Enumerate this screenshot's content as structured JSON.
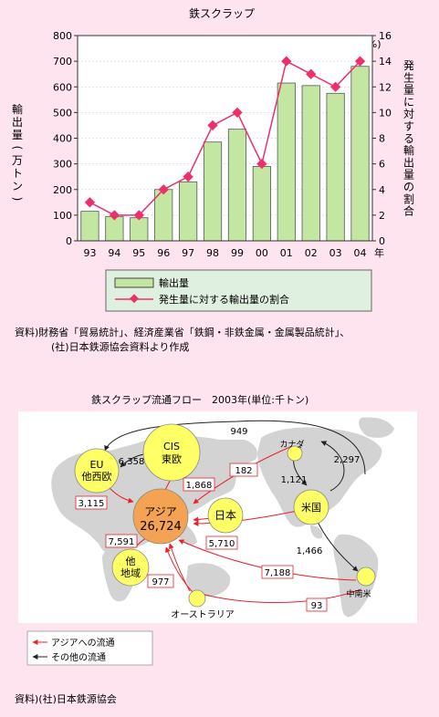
{
  "chart_data": {
    "type": "bar",
    "title": "鉄スクラップ",
    "categories": [
      "93",
      "94",
      "95",
      "96",
      "97",
      "98",
      "99",
      "00",
      "01",
      "02",
      "03",
      "04"
    ],
    "x_unit": "年",
    "y_left": {
      "label": "輸出量(万トン)",
      "ylim": [
        0,
        800
      ],
      "ticks": [
        0,
        100,
        200,
        300,
        400,
        500,
        600,
        700,
        800
      ]
    },
    "y_right": {
      "label": "発生量に対する輸出量の割合",
      "unit": "(%)",
      "ylim": [
        0,
        16
      ],
      "ticks": [
        0,
        2,
        4,
        6,
        8,
        10,
        12,
        14,
        16
      ]
    },
    "series": [
      {
        "name": "輸出量",
        "type": "bar",
        "axis": "left",
        "color": "#c3e6a2",
        "values": [
          115,
          95,
          90,
          200,
          230,
          385,
          435,
          290,
          615,
          605,
          575,
          680
        ]
      },
      {
        "name": "発生量に対する輸出量の割合",
        "type": "line",
        "axis": "right",
        "color": "#ee2f6a",
        "values": [
          3,
          2,
          2,
          4,
          5,
          9,
          10,
          6,
          14,
          13,
          12,
          14
        ]
      }
    ],
    "legend_placement": "bottom"
  },
  "source1": {
    "line1": "資料)財務省「貿易統計」、経済産業省「鉄鋼・非鉄金属・金属製品統計」、",
    "line2": "(社)日本鉄源協会資料より作成"
  },
  "flow": {
    "title": "鉄スクラップ流通フロー　2003年(単位:千トン)",
    "regions": {
      "cis": "CIS\n東欧",
      "eu": "EU\n他西欧",
      "asia_name": "アジア",
      "asia_value": "26,724",
      "japan": "日本",
      "usa": "米国",
      "other": "他\n地域",
      "canada": "カナダ",
      "latam": "中南米",
      "australia": "オーストラリア"
    },
    "flows_to_asia": [
      "1,868",
      "182",
      "3,115",
      "5,710",
      "7,591",
      "7,188",
      "977",
      "93"
    ],
    "other_flows": [
      "949",
      "6,358",
      "1,121",
      "2,297",
      "1,466"
    ],
    "colors": {
      "to_asia": "#e8202a",
      "other": "#222222",
      "map": "#d3d3d3",
      "panel": "#ffffff",
      "circle": "#ffff66",
      "asia": "#f4a352"
    },
    "legend": {
      "to_asia": "アジアへの流通",
      "other": "その他の流通"
    }
  },
  "source2": "資料)(社)日本鉄源協会"
}
